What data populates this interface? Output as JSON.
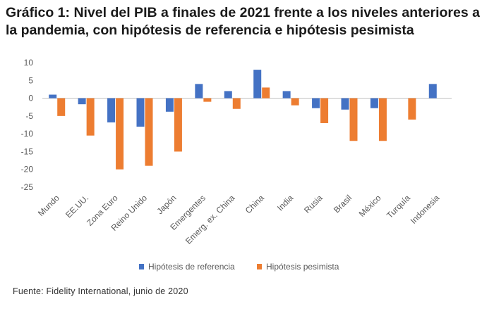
{
  "header": {
    "title": "Gráfico 1: Nivel del PIB a finales de 2021 frente a los niveles anteriores a la pandemia, con hipótesis de referencia e hipótesis pesimista"
  },
  "footer": {
    "source": "Fuente: Fidelity International, junio de 2020"
  },
  "chart_data": {
    "type": "bar",
    "categories": [
      "Mundo",
      "EE.UU.",
      "Zona Euro",
      "Reino Unido",
      "Japón",
      "Emergentes",
      "Emerg. ex. China",
      "China",
      "India",
      "Rusia",
      "Brasil",
      "México",
      "Turquía",
      "Indonesia"
    ],
    "series": [
      {
        "name": "Hipótesis de referencia",
        "color": "#4472c4",
        "values": [
          1,
          -1.7,
          -6.8,
          -8,
          -3.8,
          4,
          2,
          8,
          2,
          -2.8,
          -3.2,
          -2.8,
          null,
          4
        ]
      },
      {
        "name": "Hipótesis pesimista",
        "color": "#ed7d31",
        "values": [
          -5,
          -10.5,
          -20,
          -19,
          -15,
          -1,
          -3,
          3,
          -2,
          -7,
          -12,
          -12,
          -6,
          null
        ]
      }
    ],
    "ylim": [
      -25,
      10
    ],
    "yticks": [
      10,
      5,
      0,
      -5,
      -10,
      -15,
      -20,
      -25
    ],
    "grid": false,
    "legend": "bottom"
  }
}
